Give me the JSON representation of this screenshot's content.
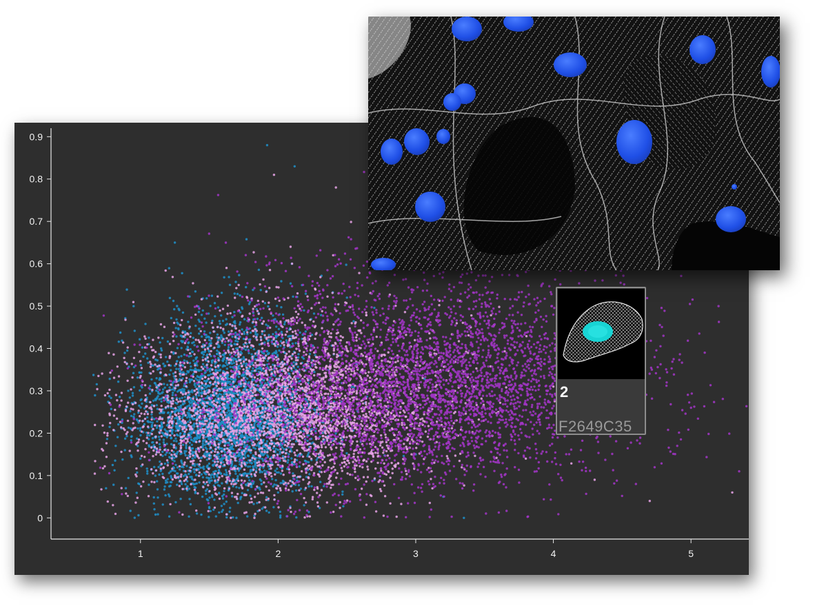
{
  "chart_data": {
    "type": "scatter",
    "title": "",
    "xlabel": "",
    "ylabel": "",
    "xlim": [
      0.35,
      5.42
    ],
    "ylim": [
      -0.05,
      0.92
    ],
    "x_ticks": [
      "1",
      "2",
      "3",
      "4",
      "5"
    ],
    "y_ticks": [
      "0",
      "0.1",
      "0.2",
      "0.3",
      "0.4",
      "0.5",
      "0.6",
      "0.7",
      "0.8",
      "0.9"
    ],
    "grid": false,
    "legend": "none",
    "series": [
      {
        "color": "#1f8fc9",
        "values": [
          [
            0.75,
            0.07
          ],
          [
            0.82,
            0.17
          ],
          [
            0.95,
            0.5
          ],
          [
            1.05,
            0.25
          ],
          [
            1.1,
            0.12
          ],
          [
            1.15,
            0.4
          ],
          [
            1.2,
            0.22
          ],
          [
            1.25,
            0.65
          ],
          [
            1.3,
            0.08
          ],
          [
            1.35,
            0.3
          ],
          [
            1.4,
            0.18
          ],
          [
            1.45,
            0.05
          ],
          [
            1.5,
            0.42
          ],
          [
            1.55,
            0.26
          ],
          [
            1.6,
            0.14
          ],
          [
            1.65,
            0.55
          ],
          [
            1.7,
            0.34
          ],
          [
            1.75,
            0.1
          ],
          [
            1.8,
            0.22
          ],
          [
            1.85,
            0.47
          ],
          [
            1.9,
            0.16
          ],
          [
            1.95,
            0.38
          ],
          [
            2.0,
            0.06
          ],
          [
            2.05,
            0.28
          ],
          [
            2.1,
            0.6
          ],
          [
            2.15,
            0.2
          ],
          [
            2.2,
            0.44
          ],
          [
            2.3,
            0.12
          ],
          [
            2.4,
            0.33
          ],
          [
            2.5,
            0.52
          ],
          [
            2.6,
            0.18
          ],
          [
            2.7,
            0.09
          ],
          [
            2.8,
            0.26
          ],
          [
            3.0,
            0.15
          ],
          [
            3.2,
            0.05
          ],
          [
            3.35,
            0.0
          ],
          [
            1.92,
            0.88
          ],
          [
            2.12,
            0.83
          ]
        ],
        "cloud": {
          "cx": 1.65,
          "cy": 0.19,
          "sx": 0.33,
          "sy": 0.13,
          "n": 3600
        }
      },
      {
        "color": "#e7a3e8",
        "values": [
          [
            0.8,
            0.03
          ],
          [
            1.0,
            0.37
          ],
          [
            1.2,
            0.16
          ],
          [
            1.4,
            0.48
          ],
          [
            1.6,
            0.27
          ],
          [
            1.8,
            0.08
          ],
          [
            2.0,
            0.41
          ],
          [
            2.2,
            0.23
          ],
          [
            2.4,
            0.62
          ],
          [
            2.6,
            0.3
          ],
          [
            2.8,
            0.11
          ],
          [
            3.0,
            0.36
          ],
          [
            3.2,
            0.2
          ],
          [
            3.4,
            0.45
          ],
          [
            3.6,
            0.25
          ],
          [
            3.8,
            0.14
          ],
          [
            4.0,
            0.31
          ],
          [
            4.3,
            0.09
          ],
          [
            4.7,
            0.04
          ],
          [
            5.3,
            0.06
          ],
          [
            1.97,
            0.81
          ],
          [
            2.42,
            0.78
          ]
        ],
        "cloud": {
          "cx": 2.05,
          "cy": 0.2,
          "sx": 0.55,
          "sy": 0.13,
          "n": 3400
        }
      },
      {
        "color": "#a235c7",
        "values": [
          [
            2.0,
            0.52
          ],
          [
            2.4,
            0.15
          ],
          [
            2.8,
            0.44
          ],
          [
            3.0,
            0.28
          ],
          [
            3.2,
            0.58
          ],
          [
            3.4,
            0.12
          ],
          [
            3.6,
            0.37
          ],
          [
            3.8,
            0.22
          ],
          [
            4.0,
            0.48
          ],
          [
            4.2,
            0.16
          ],
          [
            4.4,
            0.34
          ],
          [
            4.6,
            0.08
          ],
          [
            4.8,
            0.43
          ],
          [
            5.0,
            0.26
          ],
          [
            5.2,
            0.5
          ],
          [
            5.35,
            0.11
          ],
          [
            4.9,
            0.17
          ],
          [
            5.1,
            0.39
          ]
        ],
        "cloud": {
          "cx": 3.05,
          "cy": 0.25,
          "sx": 0.75,
          "sy": 0.15,
          "n": 4200
        }
      }
    ]
  },
  "inset": {
    "index": "2",
    "cell_id": "F2649C35"
  }
}
